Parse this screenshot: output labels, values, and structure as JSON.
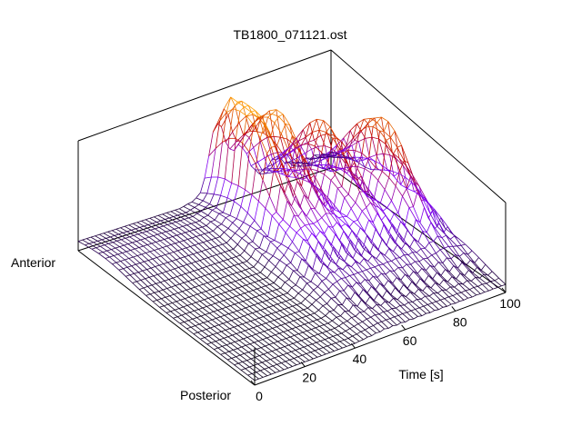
{
  "chart_data": {
    "type": "surface3d",
    "title": "TB1800_071121.ost",
    "xlabel": "Time [s]",
    "ylabel_front": "Posterior",
    "ylabel_back": "Anterior",
    "x_ticks": [
      "0",
      "20",
      "40",
      "60",
      "80",
      "100"
    ],
    "x_range": [
      0,
      100
    ],
    "y_range": [
      0,
      1
    ],
    "z_range": [
      0,
      1
    ],
    "colormap": [
      "#000000",
      "#8000ff",
      "#c00000",
      "#ffa000"
    ],
    "time_s": [
      0,
      10,
      20,
      30,
      40,
      50,
      60,
      70,
      80,
      90,
      100
    ],
    "surface_summary": {
      "low_plateau_time_range": [
        0,
        40
      ],
      "peak_region_time_range": [
        40,
        100
      ],
      "peak_times_s": [
        55,
        65,
        78,
        92
      ],
      "peak_position": "anterior"
    }
  }
}
